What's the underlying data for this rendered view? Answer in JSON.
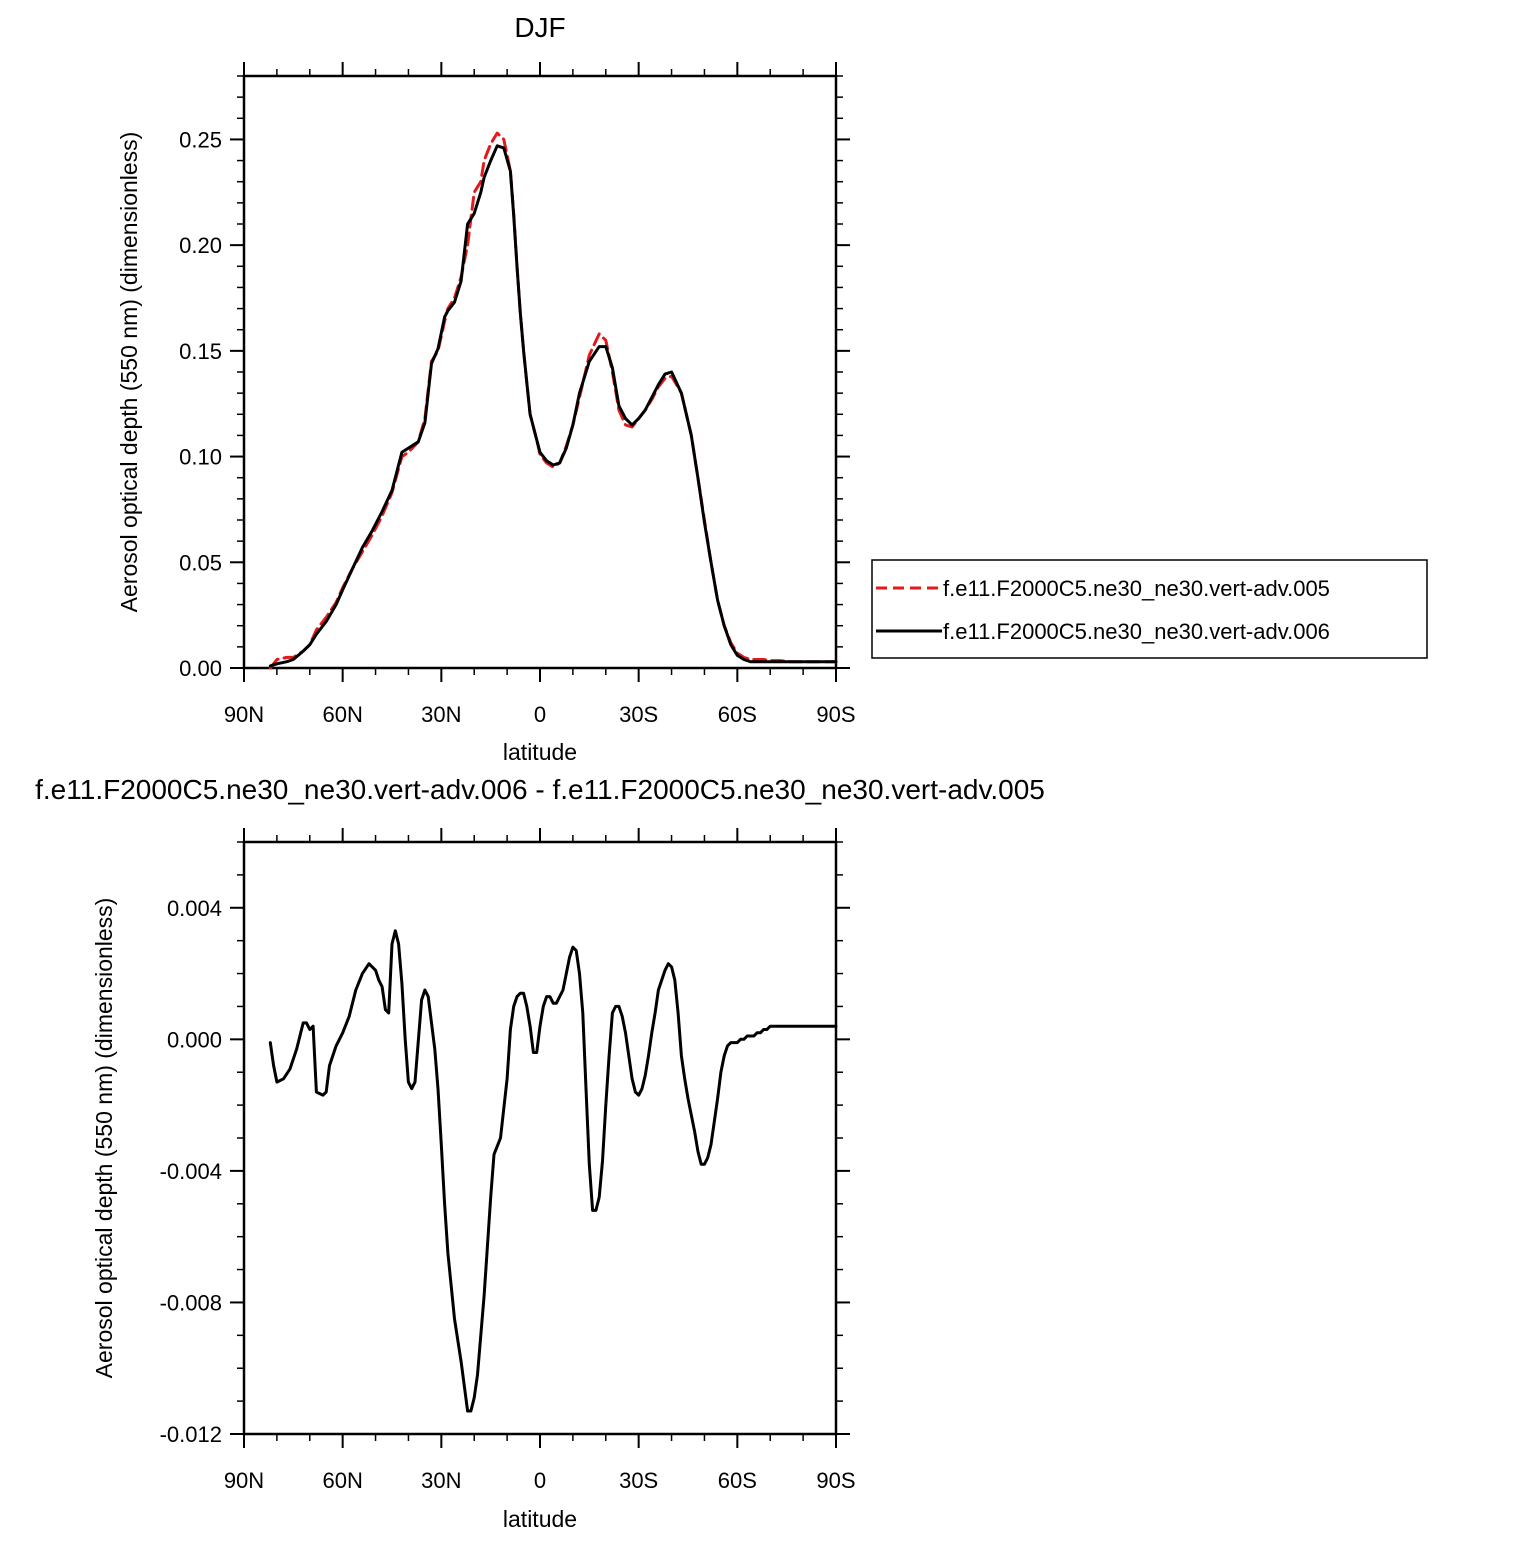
{
  "chart_data": [
    {
      "type": "line",
      "title": "DJF",
      "xlabel": "latitude",
      "ylabel": "Aerosol optical depth (550 nm) (dimensionless)",
      "xlim": [
        90,
        -90
      ],
      "ylim": [
        0.0,
        0.28
      ],
      "x_ticks": [
        90,
        60,
        30,
        0,
        -30,
        -60,
        -90
      ],
      "x_tick_labels": [
        "90N",
        "60N",
        "30N",
        "0",
        "30S",
        "60S",
        "90S"
      ],
      "y_ticks": [
        0.0,
        0.05,
        0.1,
        0.15,
        0.2,
        0.25
      ],
      "y_tick_labels": [
        "0.00",
        "0.05",
        "0.10",
        "0.15",
        "0.20",
        "0.25"
      ],
      "legend_position": "right",
      "series": [
        {
          "name": "f.e11.F2000C5.ne30_ne30.vert-adv.005",
          "color": "#e31a1c",
          "dash": "dashed",
          "x": [
            82,
            80,
            77,
            75,
            72,
            70,
            68,
            65,
            62,
            60,
            57,
            54,
            51,
            48,
            45,
            42,
            40,
            37,
            35,
            33,
            31,
            29,
            28,
            26,
            24,
            22,
            20,
            18,
            17,
            15,
            13,
            11,
            9,
            8,
            7,
            6,
            5,
            4,
            3,
            1,
            0,
            -2,
            -4,
            -6,
            -8,
            -10,
            -12,
            -15,
            -18,
            -20,
            -22,
            -24,
            -26,
            -28,
            -30,
            -32,
            -34,
            -36,
            -38,
            -40,
            -43,
            -46,
            -48,
            -50,
            -52,
            -54,
            -56,
            -58,
            -60,
            -62,
            -64,
            -66,
            -68,
            -70,
            -73,
            -76,
            -80,
            -85,
            -90
          ],
          "y": [
            0.0,
            0.004,
            0.005,
            0.005,
            0.008,
            0.011,
            0.018,
            0.024,
            0.031,
            0.038,
            0.047,
            0.055,
            0.063,
            0.072,
            0.083,
            0.1,
            0.102,
            0.107,
            0.118,
            0.145,
            0.15,
            0.164,
            0.17,
            0.175,
            0.185,
            0.2,
            0.225,
            0.23,
            0.24,
            0.248,
            0.253,
            0.25,
            0.235,
            0.215,
            0.19,
            0.168,
            0.15,
            0.135,
            0.12,
            0.108,
            0.101,
            0.097,
            0.095,
            0.097,
            0.105,
            0.115,
            0.128,
            0.148,
            0.158,
            0.155,
            0.14,
            0.122,
            0.115,
            0.114,
            0.118,
            0.122,
            0.127,
            0.133,
            0.137,
            0.138,
            0.13,
            0.11,
            0.09,
            0.07,
            0.05,
            0.032,
            0.02,
            0.012,
            0.007,
            0.005,
            0.004,
            0.004,
            0.004,
            0.0035,
            0.0035,
            0.003,
            0.003,
            0.003,
            0.003
          ]
        },
        {
          "name": "f.e11.F2000C5.ne30_ne30.vert-adv.006",
          "color": "#000000",
          "dash": "solid",
          "x": [
            82,
            80,
            77,
            75,
            72,
            70,
            68,
            65,
            62,
            60,
            57,
            54,
            51,
            48,
            45,
            42,
            40,
            37,
            35,
            33,
            31,
            29,
            28,
            26,
            24,
            22,
            20,
            18,
            17,
            15,
            13,
            11,
            9,
            8,
            7,
            6,
            5,
            4,
            3,
            1,
            0,
            -2,
            -4,
            -6,
            -8,
            -10,
            -12,
            -15,
            -18,
            -20,
            -22,
            -24,
            -26,
            -28,
            -30,
            -32,
            -34,
            -36,
            -38,
            -40,
            -43,
            -46,
            -48,
            -50,
            -52,
            -54,
            -56,
            -58,
            -60,
            -62,
            -64,
            -66,
            -68,
            -70,
            -73,
            -76,
            -80,
            -85,
            -90
          ],
          "y": [
            0.001,
            0.002,
            0.003,
            0.004,
            0.008,
            0.011,
            0.016,
            0.022,
            0.03,
            0.037,
            0.047,
            0.057,
            0.065,
            0.074,
            0.084,
            0.102,
            0.104,
            0.107,
            0.116,
            0.144,
            0.151,
            0.166,
            0.169,
            0.173,
            0.183,
            0.21,
            0.215,
            0.225,
            0.232,
            0.24,
            0.247,
            0.246,
            0.235,
            0.214,
            0.19,
            0.168,
            0.15,
            0.135,
            0.12,
            0.108,
            0.102,
            0.098,
            0.096,
            0.097,
            0.104,
            0.115,
            0.13,
            0.145,
            0.152,
            0.152,
            0.142,
            0.124,
            0.118,
            0.115,
            0.118,
            0.122,
            0.128,
            0.134,
            0.139,
            0.14,
            0.13,
            0.11,
            0.09,
            0.069,
            0.05,
            0.032,
            0.02,
            0.011,
            0.006,
            0.004,
            0.003,
            0.003,
            0.003,
            0.003,
            0.003,
            0.003,
            0.003,
            0.003,
            0.003
          ]
        }
      ]
    },
    {
      "type": "line",
      "title": "f.e11.F2000C5.ne30_ne30.vert-adv.006 - f.e11.F2000C5.ne30_ne30.vert-adv.005",
      "xlabel": "latitude",
      "ylabel": "Aerosol optical depth (550 nm) (dimensionless)",
      "xlim": [
        90,
        -90
      ],
      "ylim": [
        -0.012,
        0.006
      ],
      "x_ticks": [
        90,
        60,
        30,
        0,
        -30,
        -60,
        -90
      ],
      "x_tick_labels": [
        "90N",
        "60N",
        "30N",
        "0",
        "30S",
        "60S",
        "90S"
      ],
      "y_ticks": [
        -0.012,
        -0.008,
        -0.004,
        0.0,
        0.004
      ],
      "y_tick_labels": [
        "-0.012",
        "-0.008",
        "-0.004",
        "0.000",
        "0.004"
      ],
      "series": [
        {
          "name": "",
          "color": "#000000",
          "dash": "solid",
          "x": [
            82,
            81,
            80,
            78,
            76,
            74,
            72,
            71,
            70,
            69,
            68,
            66,
            65,
            64,
            62,
            60,
            58,
            56,
            54,
            52,
            50,
            49,
            48,
            47,
            46,
            45,
            44,
            43,
            42,
            41,
            40,
            39,
            38,
            36,
            35,
            34,
            33,
            32,
            31,
            30,
            29,
            28,
            26,
            24,
            22,
            21,
            20,
            19,
            18,
            17,
            16,
            15,
            14,
            12,
            10,
            9,
            8,
            7,
            6,
            5,
            4,
            3,
            2,
            1,
            0,
            -1,
            -2,
            -3,
            -4,
            -5,
            -6,
            -7,
            -8,
            -9,
            -10,
            -11,
            -12,
            -13,
            -14,
            -15,
            -16,
            -17,
            -18,
            -19,
            -20,
            -21,
            -22,
            -23,
            -24,
            -25,
            -26,
            -27,
            -28,
            -29,
            -30,
            -31,
            -32,
            -33,
            -34,
            -35,
            -36,
            -37,
            -38,
            -39,
            -40,
            -41,
            -42,
            -43,
            -44,
            -45,
            -46,
            -47,
            -48,
            -49,
            -50,
            -51,
            -52,
            -53,
            -54,
            -55,
            -56,
            -57,
            -58,
            -59,
            -60,
            -61,
            -62,
            -63,
            -64,
            -65,
            -66,
            -67,
            -68,
            -69,
            -70,
            -72,
            -74,
            -76,
            -78,
            -80,
            -82,
            -84,
            -86,
            -88,
            -90
          ],
          "y": [
            -0.0001,
            -0.0008,
            -0.0013,
            -0.0012,
            -0.0009,
            -0.0003,
            0.0005,
            0.0005,
            0.0003,
            0.0004,
            -0.0016,
            -0.0017,
            -0.0016,
            -0.0008,
            -0.0002,
            0.0002,
            0.0007,
            0.0015,
            0.002,
            0.0023,
            0.0021,
            0.0018,
            0.0016,
            0.0009,
            0.0008,
            0.0029,
            0.0033,
            0.0029,
            0.0017,
            0.0,
            -0.0013,
            -0.0015,
            -0.0013,
            0.0012,
            0.0015,
            0.0013,
            0.0005,
            -0.0003,
            -0.0015,
            -0.0032,
            -0.005,
            -0.0065,
            -0.0085,
            -0.0098,
            -0.0113,
            -0.0113,
            -0.0109,
            -0.0102,
            -0.009,
            -0.0078,
            -0.0063,
            -0.0048,
            -0.0035,
            -0.003,
            -0.0012,
            0.0003,
            0.001,
            0.0013,
            0.0014,
            0.0014,
            0.001,
            0.0004,
            -0.0004,
            -0.0004,
            0.0004,
            0.001,
            0.0013,
            0.0013,
            0.0011,
            0.0011,
            0.0013,
            0.0015,
            0.002,
            0.0025,
            0.0028,
            0.0027,
            0.002,
            0.0008,
            -0.0015,
            -0.0038,
            -0.0052,
            -0.0052,
            -0.0048,
            -0.0037,
            -0.002,
            -0.0005,
            0.0008,
            0.001,
            0.001,
            0.0007,
            0.0002,
            -0.0005,
            -0.0012,
            -0.0016,
            -0.0017,
            -0.0015,
            -0.0011,
            -0.0005,
            0.0002,
            0.0008,
            0.0015,
            0.0018,
            0.0021,
            0.0023,
            0.0022,
            0.0018,
            0.0008,
            -0.0005,
            -0.0012,
            -0.0018,
            -0.0023,
            -0.0028,
            -0.0034,
            -0.0038,
            -0.0038,
            -0.0036,
            -0.0032,
            -0.0025,
            -0.0018,
            -0.001,
            -0.0005,
            -0.0002,
            -0.0001,
            -0.0001,
            -0.0001,
            0.0,
            0.0,
            0.0001,
            0.0001,
            0.0001,
            0.0002,
            0.0002,
            0.0003,
            0.0003,
            0.0004,
            0.0004,
            0.0004,
            0.0004,
            0.0004,
            0.0004,
            0.0004,
            0.0004,
            0.0004,
            0.0004,
            0.0004
          ]
        }
      ]
    }
  ]
}
